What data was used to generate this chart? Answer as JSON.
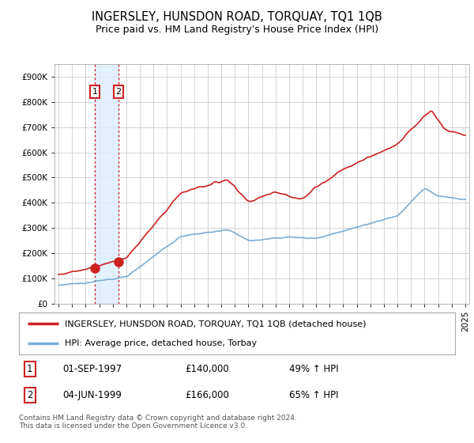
{
  "title": "INGERSLEY, HUNSDON ROAD, TORQUAY, TQ1 1QB",
  "subtitle": "Price paid vs. HM Land Registry's House Price Index (HPI)",
  "ylim": [
    0,
    950000
  ],
  "yticks": [
    0,
    100000,
    200000,
    300000,
    400000,
    500000,
    600000,
    700000,
    800000,
    900000
  ],
  "ytick_labels": [
    "£0",
    "£100K",
    "£200K",
    "£300K",
    "£400K",
    "£500K",
    "£600K",
    "£700K",
    "£800K",
    "£900K"
  ],
  "xlim_start": 1994.7,
  "xlim_end": 2025.3,
  "sale1_x": 1997.67,
  "sale1_y": 140000,
  "sale2_x": 1999.42,
  "sale2_y": 166000,
  "legend_line1": "INGERSLEY, HUNSDON ROAD, TORQUAY, TQ1 1QB (detached house)",
  "legend_line2": "HPI: Average price, detached house, Torbay",
  "table_row1": [
    "1",
    "01-SEP-1997",
    "£140,000",
    "49% ↑ HPI"
  ],
  "table_row2": [
    "2",
    "04-JUN-1999",
    "£166,000",
    "65% ↑ HPI"
  ],
  "footer": "Contains HM Land Registry data © Crown copyright and database right 2024.\nThis data is licensed under the Open Government Licence v3.0.",
  "red_color": "#cc2222",
  "blue_color": "#7dadd4",
  "shade_color": "#ddeeff",
  "background_color": "#ffffff",
  "grid_color": "#cccccc",
  "title_fontsize": 10.5,
  "subtitle_fontsize": 9,
  "tick_fontsize": 7.5,
  "label_fontsize": 8.5
}
